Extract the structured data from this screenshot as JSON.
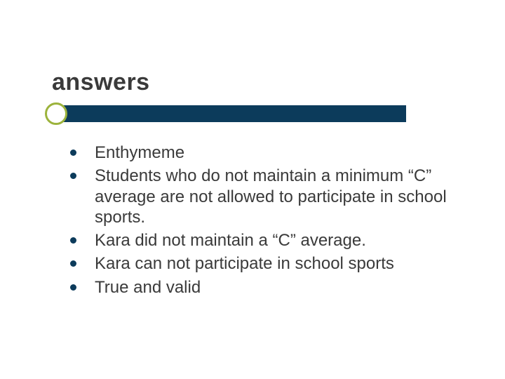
{
  "slide": {
    "title": "answers",
    "title_color": "#3a3a3a",
    "title_fontsize": 34,
    "title_fontweight": "bold",
    "background_color": "#ffffff",
    "accent_bar": {
      "circle_border_color": "#9cb33c",
      "circle_border_width": 3,
      "circle_diameter": 32,
      "rect_color": "#0c3b5b",
      "rect_width": 497,
      "rect_height": 24
    },
    "bullets": {
      "dot_color": "#0c3b5b",
      "dot_diameter": 9,
      "text_color": "#3a3a3a",
      "text_fontsize": 24,
      "items": [
        "Enthymeme",
        "Students who do not maintain a minimum “C” average are not allowed to participate in school sports.",
        "Kara did not maintain a “C” average.",
        "Kara can not participate in school sports",
        "True and valid"
      ]
    }
  }
}
